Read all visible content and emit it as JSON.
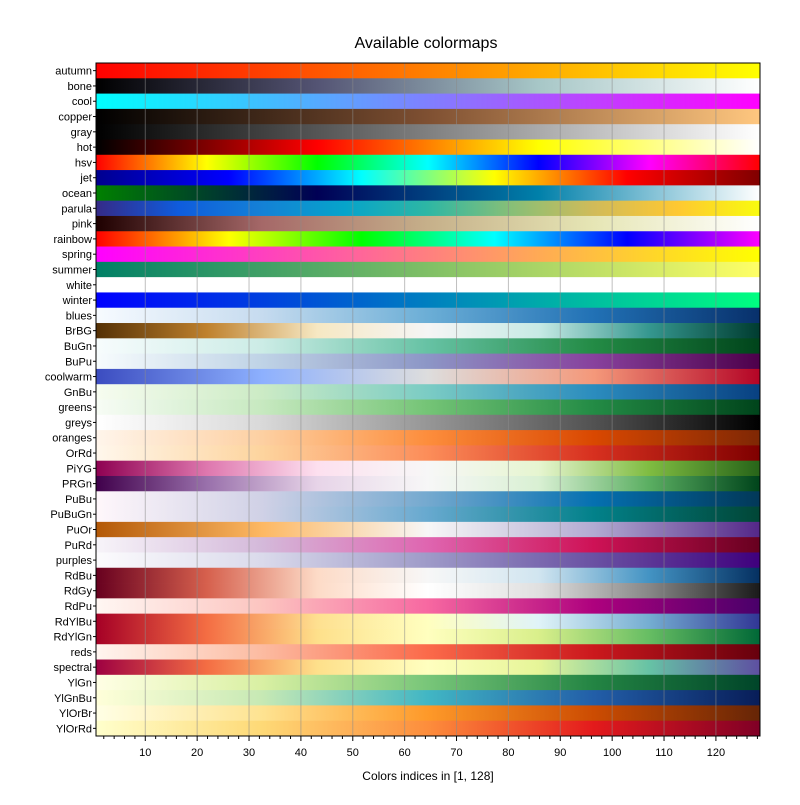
{
  "chart_data": {
    "type": "heatmap",
    "title": "Available colormaps",
    "xlabel": "Colors indices in [1, 128]",
    "ylabel": "",
    "xlim": [
      1,
      128
    ],
    "x_ticks": [
      10,
      20,
      30,
      40,
      50,
      60,
      70,
      80,
      90,
      100,
      110,
      120
    ],
    "grid": true,
    "colormaps": [
      {
        "name": "autumn",
        "stops": [
          "#ff0000",
          "#ff8000",
          "#ffff00"
        ]
      },
      {
        "name": "bone",
        "stops": [
          "#000000",
          "#545474",
          "#a7c7c7",
          "#ffffff"
        ]
      },
      {
        "name": "cool",
        "stops": [
          "#00ffff",
          "#ff00ff"
        ]
      },
      {
        "name": "copper",
        "stops": [
          "#000000",
          "#7f5032",
          "#ffc77f"
        ]
      },
      {
        "name": "gray",
        "stops": [
          "#000000",
          "#ffffff"
        ]
      },
      {
        "name": "hot",
        "stops": [
          "#000000",
          "#ff0000",
          "#ffff00",
          "#ffffff"
        ]
      },
      {
        "name": "hsv",
        "stops": [
          "#ff0000",
          "#ffff00",
          "#00ff00",
          "#00ffff",
          "#0000ff",
          "#ff00ff",
          "#ff0000"
        ]
      },
      {
        "name": "jet",
        "stops": [
          "#00008f",
          "#0000ff",
          "#00ffff",
          "#ffff00",
          "#ff0000",
          "#800000"
        ]
      },
      {
        "name": "ocean",
        "stops": [
          "#008000",
          "#000055",
          "#0080aa",
          "#ffffff"
        ]
      },
      {
        "name": "parula",
        "stops": [
          "#352a87",
          "#0f5cdd",
          "#1481d6",
          "#06a4ca",
          "#2eb7a4",
          "#87bf77",
          "#d1bb59",
          "#fec832",
          "#f9fb0e"
        ]
      },
      {
        "name": "pink",
        "stops": [
          "#1e0000",
          "#a56868",
          "#c6b08a",
          "#e6e6b5",
          "#ffffff"
        ]
      },
      {
        "name": "rainbow",
        "stops": [
          "#ff0000",
          "#ffff00",
          "#00ff00",
          "#00ffff",
          "#0000ff",
          "#ff00ff"
        ]
      },
      {
        "name": "spring",
        "stops": [
          "#ff00ff",
          "#ffff00"
        ]
      },
      {
        "name": "summer",
        "stops": [
          "#008066",
          "#ffff66"
        ]
      },
      {
        "name": "white",
        "stops": [
          "#ffffff",
          "#ffffff"
        ]
      },
      {
        "name": "winter",
        "stops": [
          "#0000ff",
          "#00ff80"
        ]
      },
      {
        "name": "blues",
        "stops": [
          "#f7fbff",
          "#c6dbef",
          "#6baed6",
          "#2171b5",
          "#08306b"
        ]
      },
      {
        "name": "BrBG",
        "stops": [
          "#543005",
          "#bf812d",
          "#f6e8c3",
          "#f5f5f5",
          "#c7eae5",
          "#35978f",
          "#003c30"
        ]
      },
      {
        "name": "BuGn",
        "stops": [
          "#f7fcfd",
          "#ccece6",
          "#66c2a4",
          "#238b45",
          "#00441b"
        ]
      },
      {
        "name": "BuPu",
        "stops": [
          "#f7fcfd",
          "#bfd3e6",
          "#8c96c6",
          "#88419d",
          "#4d004b"
        ]
      },
      {
        "name": "coolwarm",
        "stops": [
          "#3b4cc0",
          "#8db0fe",
          "#dddddd",
          "#f4987a",
          "#b40426"
        ]
      },
      {
        "name": "GnBu",
        "stops": [
          "#f7fcf0",
          "#ccebc5",
          "#7bccc4",
          "#2b8cbe",
          "#084081"
        ]
      },
      {
        "name": "greens",
        "stops": [
          "#f7fcf5",
          "#c7e9c0",
          "#74c476",
          "#238b45",
          "#00441b"
        ]
      },
      {
        "name": "greys",
        "stops": [
          "#ffffff",
          "#d9d9d9",
          "#969696",
          "#525252",
          "#000000"
        ]
      },
      {
        "name": "oranges",
        "stops": [
          "#fff5eb",
          "#fdd0a2",
          "#fd8d3c",
          "#d94801",
          "#7f2704"
        ]
      },
      {
        "name": "OrRd",
        "stops": [
          "#fff7ec",
          "#fdd49e",
          "#fc8d59",
          "#d7301f",
          "#7f0000"
        ]
      },
      {
        "name": "PiYG",
        "stops": [
          "#8e0152",
          "#de77ae",
          "#fde0ef",
          "#f7f7f7",
          "#e6f5d0",
          "#7fbc41",
          "#276419"
        ]
      },
      {
        "name": "PRGn",
        "stops": [
          "#40004b",
          "#9970ab",
          "#e7d4e8",
          "#f7f7f7",
          "#d9f0d3",
          "#5aae61",
          "#00441b"
        ]
      },
      {
        "name": "PuBu",
        "stops": [
          "#fff7fb",
          "#d0d1e6",
          "#74a9cf",
          "#0570b0",
          "#023858"
        ]
      },
      {
        "name": "PuBuGn",
        "stops": [
          "#fff7fb",
          "#d0d1e6",
          "#67a9cf",
          "#02818a",
          "#014636"
        ]
      },
      {
        "name": "PuOr",
        "stops": [
          "#b35806",
          "#fdb863",
          "#f7f7f7",
          "#b2abd2",
          "#542788"
        ]
      },
      {
        "name": "PuRd",
        "stops": [
          "#f7f4f9",
          "#d4b9da",
          "#df65b0",
          "#ce1256",
          "#67001f"
        ]
      },
      {
        "name": "purples",
        "stops": [
          "#fcfbfd",
          "#dadaeb",
          "#9e9ac8",
          "#6a51a3",
          "#3f007d"
        ]
      },
      {
        "name": "RdBu",
        "stops": [
          "#67001f",
          "#d6604d",
          "#fddbc7",
          "#f7f7f7",
          "#d1e5f0",
          "#4393c3",
          "#053061"
        ]
      },
      {
        "name": "RdGy",
        "stops": [
          "#67001f",
          "#d6604d",
          "#fddbc7",
          "#ffffff",
          "#e0e0e0",
          "#878787",
          "#1a1a1a"
        ]
      },
      {
        "name": "RdPu",
        "stops": [
          "#fff7f3",
          "#fcc5c0",
          "#f768a1",
          "#ae017e",
          "#49006a"
        ]
      },
      {
        "name": "RdYlBu",
        "stops": [
          "#a50026",
          "#f46d43",
          "#fee090",
          "#ffffbf",
          "#e0f3f8",
          "#74add1",
          "#313695"
        ]
      },
      {
        "name": "RdYlGn",
        "stops": [
          "#a50026",
          "#f46d43",
          "#fee08b",
          "#ffffbf",
          "#d9ef8b",
          "#66bd63",
          "#006837"
        ]
      },
      {
        "name": "reds",
        "stops": [
          "#fff5f0",
          "#fcbba1",
          "#fb6a4a",
          "#cb181d",
          "#67000d"
        ]
      },
      {
        "name": "spectral",
        "stops": [
          "#9e0142",
          "#f46d43",
          "#fee08b",
          "#ffffbf",
          "#e6f598",
          "#66c2a5",
          "#5e4fa2"
        ]
      },
      {
        "name": "YlGn",
        "stops": [
          "#ffffe5",
          "#d9f0a3",
          "#78c679",
          "#238443",
          "#004529"
        ]
      },
      {
        "name": "YlGnBu",
        "stops": [
          "#ffffd9",
          "#c7e9b4",
          "#41b6c4",
          "#225ea8",
          "#081d58"
        ]
      },
      {
        "name": "YlOrBr",
        "stops": [
          "#ffffe5",
          "#fee391",
          "#fe9929",
          "#cc4c02",
          "#662506"
        ]
      },
      {
        "name": "YlOrRd",
        "stops": [
          "#ffffcc",
          "#fed976",
          "#fd8d3c",
          "#e31a1c",
          "#800026"
        ]
      }
    ]
  }
}
